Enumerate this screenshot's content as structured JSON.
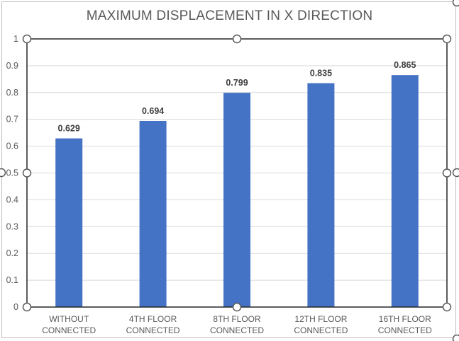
{
  "chart_data": {
    "type": "bar",
    "title": "MAXIMUM DISPLACEMENT IN X DIRECTION",
    "categories": [
      [
        "WITHOUT",
        "CONNECTED"
      ],
      [
        "4TH FLOOR",
        "CONNECTED"
      ],
      [
        "8TH FLOOR",
        "CONNECTED"
      ],
      [
        "12TH FLOOR",
        "CONNECTED"
      ],
      [
        "16TH FLOOR",
        "CONNECTED"
      ]
    ],
    "values": [
      0.629,
      0.694,
      0.799,
      0.835,
      0.865
    ],
    "data_labels": [
      "0.629",
      "0.694",
      "0.799",
      "0.835",
      "0.865"
    ],
    "y_ticks": [
      "0",
      "0.1",
      "0.2",
      "0.3",
      "0.4",
      "0.5",
      "0.6",
      "0.7",
      "0.8",
      "0.9",
      "1"
    ],
    "ylim": [
      0,
      1
    ],
    "xlabel": "",
    "ylabel": "",
    "grid": true,
    "legend": "none",
    "bar_color": "#4472c4"
  }
}
